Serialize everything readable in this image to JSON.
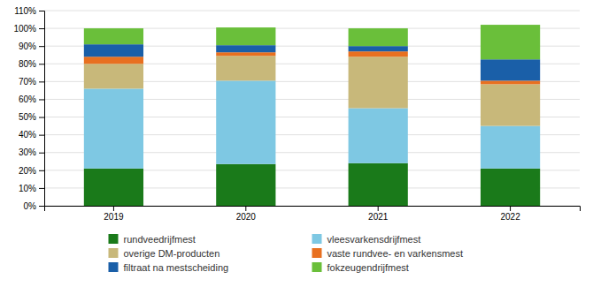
{
  "chart_data": {
    "type": "bar",
    "stacked": true,
    "grid": true,
    "legend": "bottom",
    "categories": [
      "2019",
      "2020",
      "2021",
      "2022"
    ],
    "series": [
      {
        "name": "rundveedrijfmest",
        "color": "#1a7a1a",
        "values": [
          0.21,
          0.235,
          0.24,
          0.21
        ]
      },
      {
        "name": "vleesvarkensdrijfmest",
        "color": "#7ec8e3",
        "values": [
          0.45,
          0.47,
          0.31,
          0.24
        ]
      },
      {
        "name": "overige DM-producten",
        "color": "#c8b87a",
        "values": [
          0.14,
          0.14,
          0.29,
          0.235
        ]
      },
      {
        "name": "vaste rundvee- en varkensmest",
        "color": "#e87020",
        "values": [
          0.04,
          0.02,
          0.03,
          0.02
        ]
      },
      {
        "name": "filtraat na mestscheiding",
        "color": "#1a5fa8",
        "values": [
          0.07,
          0.04,
          0.03,
          0.12
        ]
      },
      {
        "name": "fokzeugendrijfmest",
        "color": "#6abf3a",
        "values": [
          0.09,
          0.1,
          0.1,
          0.195
        ]
      }
    ],
    "ylim": [
      0,
      1.1
    ],
    "yticks": [
      {
        "value": 0,
        "label": "0%"
      },
      {
        "value": 0.1,
        "label": "10%"
      },
      {
        "value": 0.2,
        "label": "20%"
      },
      {
        "value": 0.3,
        "label": "30%"
      },
      {
        "value": 0.4,
        "label": "40%"
      },
      {
        "value": 0.5,
        "label": "50%"
      },
      {
        "value": 0.6,
        "label": "60%"
      },
      {
        "value": 0.7,
        "label": "70%"
      },
      {
        "value": 0.8,
        "label": "80%"
      },
      {
        "value": 0.9,
        "label": "90%"
      },
      {
        "value": 1.0,
        "label": "100%"
      },
      {
        "value": 1.1,
        "label": "110%"
      }
    ]
  }
}
